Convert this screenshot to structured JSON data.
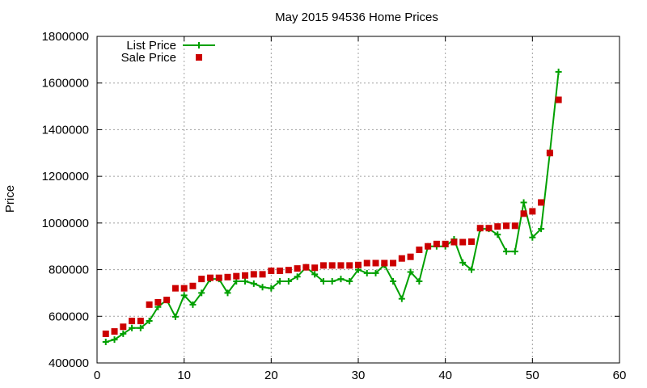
{
  "chart_data": {
    "type": "line",
    "title": "May 2015 94536 Home Prices",
    "xlabel": "",
    "ylabel": "Price",
    "xlim": [
      0,
      60
    ],
    "ylim": [
      400000,
      1800000
    ],
    "xticks": [
      0,
      10,
      20,
      30,
      40,
      50,
      60
    ],
    "yticks": [
      400000,
      600000,
      800000,
      1000000,
      1200000,
      1400000,
      1600000,
      1800000
    ],
    "grid": true,
    "legend_position": "top-left",
    "x": [
      1,
      2,
      3,
      4,
      5,
      6,
      7,
      8,
      9,
      10,
      11,
      12,
      13,
      14,
      15,
      16,
      17,
      18,
      19,
      20,
      21,
      22,
      23,
      24,
      25,
      26,
      27,
      28,
      29,
      30,
      31,
      32,
      33,
      34,
      35,
      36,
      37,
      38,
      39,
      40,
      41,
      42,
      43,
      44,
      45,
      46,
      47,
      48,
      49,
      50,
      51,
      52,
      53
    ],
    "series": [
      {
        "name": "List Price",
        "style": "line-plus",
        "color": "#00a000",
        "values": [
          490000,
          500000,
          525000,
          550000,
          550000,
          580000,
          640000,
          670000,
          598000,
          690000,
          650000,
          700000,
          760000,
          760000,
          700000,
          750000,
          750000,
          740000,
          725000,
          720000,
          750000,
          750000,
          770000,
          810000,
          780000,
          750000,
          750000,
          760000,
          750000,
          800000,
          785000,
          785000,
          820000,
          750000,
          675000,
          790000,
          750000,
          900000,
          900000,
          900000,
          930000,
          830000,
          800000,
          975000,
          975000,
          950000,
          878000,
          878000,
          1088000,
          938000,
          975000,
          1300000,
          1648000
        ]
      },
      {
        "name": "Sale Price",
        "style": "square",
        "color": "#cc0000",
        "values": [
          525000,
          535000,
          555000,
          580000,
          580000,
          650000,
          660000,
          670000,
          720000,
          720000,
          730000,
          760000,
          765000,
          765000,
          768000,
          772000,
          775000,
          780000,
          780000,
          795000,
          795000,
          798000,
          805000,
          810000,
          808000,
          818000,
          818000,
          818000,
          818000,
          820000,
          828000,
          828000,
          828000,
          828000,
          848000,
          855000,
          885000,
          900000,
          910000,
          910000,
          918000,
          918000,
          920000,
          978000,
          978000,
          985000,
          988000,
          988000,
          1040000,
          1050000,
          1088000,
          1300000,
          1528000
        ]
      }
    ]
  }
}
